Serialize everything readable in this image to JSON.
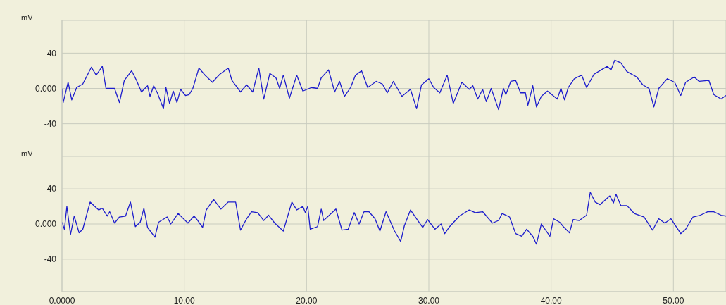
{
  "chart_data": [
    {
      "type": "line",
      "ylabel": "mV",
      "tick_labels": "y",
      "grid": true,
      "legend": false,
      "marker": "none",
      "line_style": "solid",
      "xlim": [
        0,
        54.3
      ],
      "xticks": [
        {
          "value": 0,
          "label": null
        },
        {
          "value": 10,
          "label": null
        },
        {
          "value": 20,
          "label": null
        },
        {
          "value": 30,
          "label": null
        },
        {
          "value": 40,
          "label": null
        },
        {
          "value": 50,
          "label": null
        }
      ],
      "ylim": [
        -77,
        77
      ],
      "yticks": [
        {
          "value": -40,
          "label": "-40"
        },
        {
          "value": 0,
          "label": "0.000"
        },
        {
          "value": 40,
          "label": "40"
        }
      ],
      "x": [
        0,
        0.1,
        0.5,
        0.8,
        1.2,
        1.7,
        2.0,
        2.4,
        2.8,
        3.3,
        3.6,
        4.0,
        4.3,
        4.7,
        5.1,
        5.7,
        6.1,
        6.5,
        7.0,
        7.2,
        7.5,
        7.8,
        8.3,
        8.5,
        8.8,
        9.1,
        9.4,
        9.7,
        10.1,
        10.4,
        10.7,
        11.2,
        11.7,
        12.3,
        12.9,
        13.6,
        13.9,
        14.6,
        15.1,
        15.6,
        16.1,
        16.5,
        17.0,
        17.5,
        17.8,
        18.1,
        18.6,
        19.2,
        19.7,
        20.4,
        20.9,
        21.2,
        21.8,
        22.3,
        22.7,
        23.1,
        23.6,
        24.0,
        24.5,
        25.0,
        25.7,
        26.2,
        26.6,
        27.1,
        27.8,
        28.5,
        29.0,
        29.4,
        30.0,
        30.4,
        30.9,
        31.5,
        32.0,
        32.7,
        33.3,
        33.6,
        34.0,
        34.4,
        34.7,
        35.1,
        35.7,
        36.1,
        36.3,
        36.7,
        37.1,
        37.5,
        37.9,
        38.1,
        38.5,
        38.8,
        39.2,
        39.7,
        40.5,
        40.8,
        41.1,
        41.4,
        41.9,
        42.5,
        42.9,
        43.5,
        44.1,
        44.6,
        44.9,
        45.2,
        45.7,
        46.2,
        47.0,
        47.5,
        48.0,
        48.4,
        48.8,
        49.5,
        50.1,
        50.6,
        51.0,
        51.7,
        52.1,
        52.9,
        53.3,
        53.9,
        54.3
      ],
      "series": [
        {
          "color": "#1c1ccc",
          "values": [
            0,
            -16,
            7,
            -13,
            1,
            5,
            13,
            24,
            15,
            25,
            0,
            0,
            0,
            -16,
            9,
            20,
            9,
            -4,
            3,
            -9,
            3,
            -5,
            -23,
            1,
            -17,
            -3,
            -16,
            -1,
            -8,
            -7,
            0,
            23,
            15,
            7,
            16,
            23,
            9,
            -4,
            4,
            -4,
            23,
            -12,
            17,
            12,
            0,
            15,
            -11,
            15,
            -3,
            1,
            0,
            12,
            21,
            -4,
            8,
            -9,
            1,
            15,
            20,
            1,
            8,
            5,
            -5,
            8,
            -9,
            -1,
            -23,
            4,
            11,
            1,
            -5,
            15,
            -17,
            7,
            -1,
            3,
            -12,
            -1,
            -15,
            0,
            -24,
            0,
            -7,
            8,
            9,
            -5,
            -5,
            -19,
            3,
            -21,
            -9,
            -3,
            -12,
            0,
            -13,
            1,
            11,
            15,
            1,
            16,
            21,
            25,
            21,
            32,
            29,
            19,
            13,
            4,
            0,
            -21,
            0,
            11,
            7,
            -8,
            7,
            13,
            8,
            9,
            -7,
            -12,
            -8
          ]
        }
      ]
    },
    {
      "type": "line",
      "ylabel": "mV",
      "grid": true,
      "legend": false,
      "marker": "none",
      "line_style": "solid",
      "xlim": [
        0,
        54.3
      ],
      "xticks": [
        {
          "value": 0,
          "label": "0.0000"
        },
        {
          "value": 10,
          "label": "10.00"
        },
        {
          "value": 20,
          "label": "20.00"
        },
        {
          "value": 30,
          "label": "30.00"
        },
        {
          "value": 40,
          "label": "40.00"
        },
        {
          "value": 50,
          "label": "50.00"
        }
      ],
      "ylim": [
        -77,
        77
      ],
      "yticks": [
        {
          "value": -40,
          "label": "-40"
        },
        {
          "value": 0,
          "label": "0.000"
        },
        {
          "value": 40,
          "label": "40"
        }
      ],
      "x": [
        0,
        0.2,
        0.4,
        0.7,
        1.0,
        1.4,
        1.7,
        2.3,
        2.6,
        3.0,
        3.3,
        3.7,
        3.9,
        4.3,
        4.7,
        5.2,
        5.6,
        6.0,
        6.4,
        6.7,
        7.0,
        7.6,
        7.9,
        8.6,
        8.9,
        9.5,
        10.3,
        10.8,
        11.1,
        11.5,
        11.8,
        12.4,
        13.0,
        13.6,
        14.2,
        14.6,
        15.1,
        15.5,
        16.0,
        16.5,
        16.9,
        17.4,
        18.1,
        18.8,
        19.2,
        19.7,
        19.9,
        20.1,
        20.3,
        20.9,
        21.2,
        21.4,
        22.4,
        22.9,
        23.4,
        23.9,
        24.3,
        24.7,
        25.1,
        25.6,
        26.0,
        26.5,
        27.2,
        27.7,
        28.0,
        28.5,
        29.1,
        29.5,
        29.9,
        30.5,
        31.0,
        31.3,
        31.7,
        32.5,
        33.3,
        33.8,
        34.4,
        35.2,
        35.7,
        36.0,
        36.6,
        37.1,
        37.6,
        38.0,
        38.5,
        38.8,
        39.2,
        39.9,
        40.2,
        40.7,
        41.0,
        41.5,
        41.8,
        42.3,
        42.9,
        43.2,
        43.6,
        44.0,
        44.8,
        45.1,
        45.3,
        45.7,
        46.2,
        46.8,
        47.6,
        48.3,
        48.8,
        49.3,
        49.8,
        50.6,
        51.0,
        51.6,
        52.2,
        52.8,
        53.3,
        53.9,
        54.3
      ],
      "series": [
        {
          "color": "#1c1ccc",
          "values": [
            2,
            -6,
            20,
            -12,
            9,
            -10,
            -6,
            25,
            21,
            16,
            18,
            9,
            14,
            1,
            8,
            9,
            25,
            -3,
            2,
            18,
            -4,
            -15,
            2,
            8,
            0,
            12,
            1,
            9,
            4,
            -4,
            16,
            28,
            17,
            25,
            25,
            -7,
            6,
            14,
            13,
            4,
            10,
            1,
            -8,
            25,
            16,
            20,
            13,
            20,
            -6,
            -3,
            17,
            4,
            17,
            -7,
            -6,
            13,
            0,
            14,
            14,
            6,
            -8,
            14,
            -8,
            -20,
            -2,
            16,
            4,
            -4,
            5,
            -6,
            0,
            -11,
            -3,
            9,
            16,
            13,
            14,
            1,
            4,
            12,
            8,
            -11,
            -14,
            -6,
            -14,
            -23,
            0,
            -14,
            6,
            2,
            -3,
            -10,
            5,
            4,
            10,
            36,
            25,
            22,
            32,
            24,
            34,
            21,
            21,
            12,
            8,
            -7,
            6,
            1,
            6,
            -11,
            -6,
            8,
            10,
            14,
            14,
            10,
            9
          ]
        }
      ]
    }
  ]
}
